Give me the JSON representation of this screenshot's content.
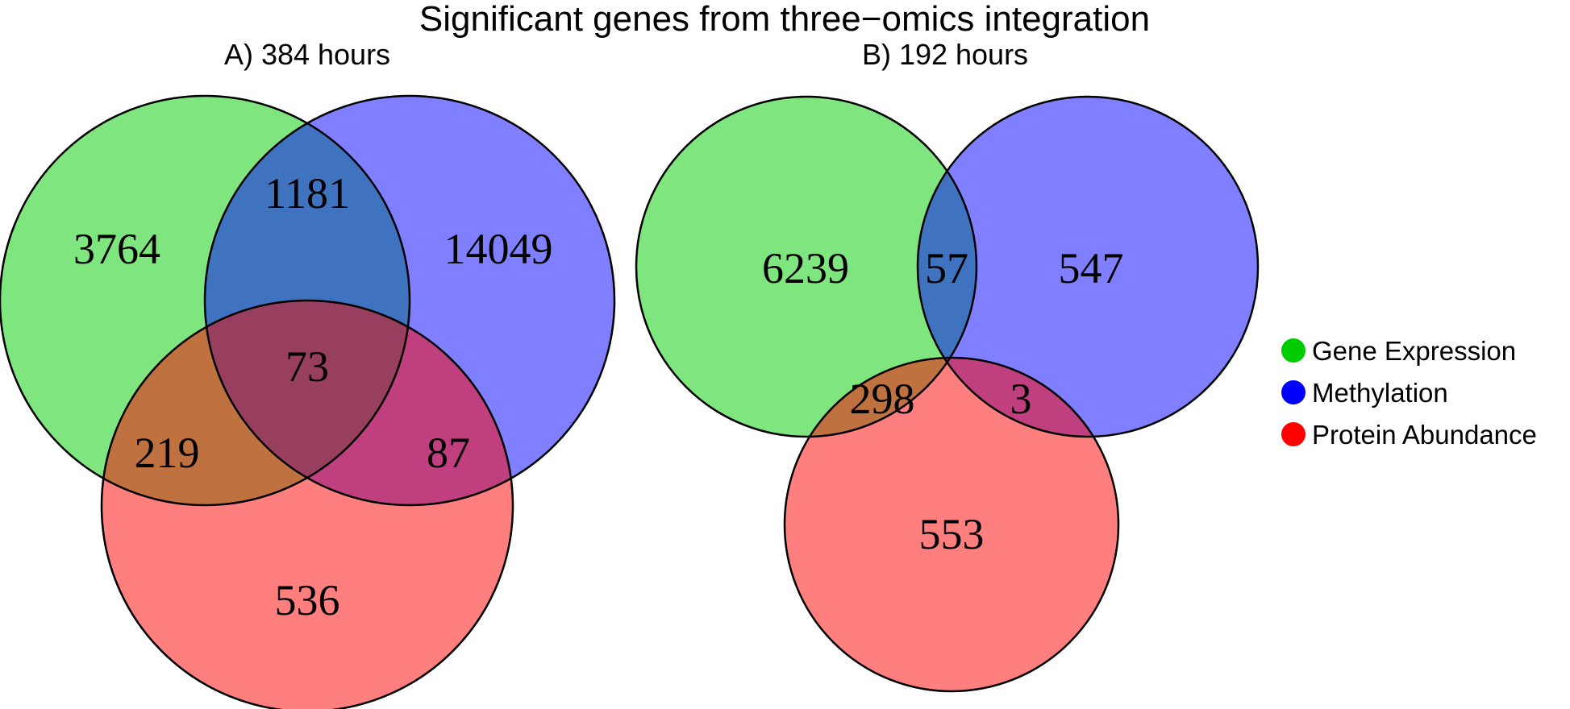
{
  "title": "Significant genes from three−omics integration",
  "legend": [
    {
      "label": "Gene Expression",
      "color": "#00cc00"
    },
    {
      "label": "Methylation",
      "color": "#0000ff"
    },
    {
      "label": "Protein Abundance",
      "color": "#ff0000"
    }
  ],
  "fill_colors": {
    "gene_expression": "#7fe57f",
    "methylation": "#7f7fff",
    "protein_abundance": "#ff7f7f"
  },
  "panels": [
    {
      "title": "A) 384 hours",
      "regions": {
        "gene_expression_only": "3764",
        "methylation_only": "14049",
        "protein_abundance_only": "536",
        "gene_expression_methylation": "1181",
        "gene_expression_protein_abundance": "219",
        "methylation_protein_abundance": "87",
        "all_three": "73"
      }
    },
    {
      "title": "B) 192 hours",
      "regions": {
        "gene_expression_only": "6239",
        "methylation_only": "547",
        "protein_abundance_only": "553",
        "gene_expression_methylation": "57",
        "gene_expression_protein_abundance": "298",
        "methylation_protein_abundance": "3"
      }
    }
  ]
}
